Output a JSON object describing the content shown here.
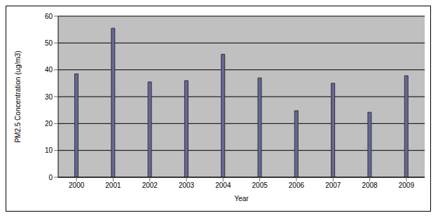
{
  "chart_data": {
    "type": "bar",
    "categories": [
      "2000",
      "2001",
      "2002",
      "2003",
      "2004",
      "2005",
      "2006",
      "2007",
      "2008",
      "2009"
    ],
    "values": [
      38.5,
      55.5,
      35.5,
      36,
      45.8,
      37,
      24.8,
      35,
      24.2,
      37.8
    ],
    "color": "#666699",
    "xlabel": "Year",
    "ylabel": "PM2.5 Concentration (ug/m3)",
    "ylim": [
      0,
      60
    ],
    "yticks": [
      0,
      10,
      20,
      30,
      40,
      50,
      60
    ],
    "grid": true
  }
}
